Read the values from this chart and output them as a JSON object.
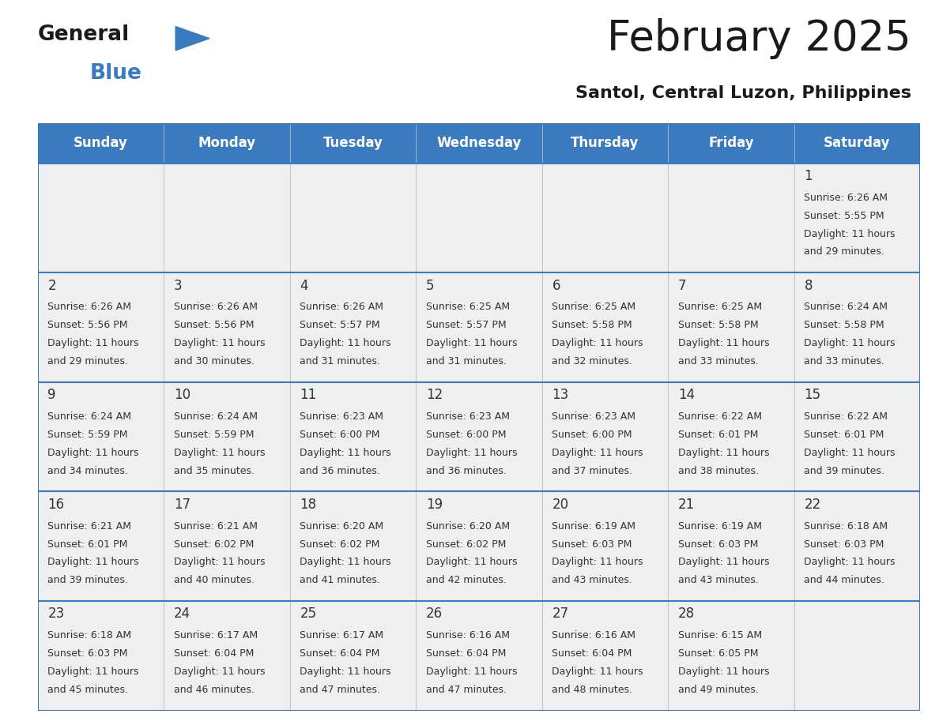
{
  "title": "February 2025",
  "subtitle": "Santol, Central Luzon, Philippines",
  "days_of_week": [
    "Sunday",
    "Monday",
    "Tuesday",
    "Wednesday",
    "Thursday",
    "Friday",
    "Saturday"
  ],
  "header_bg_color": "#3a7abf",
  "header_text_color": "#ffffff",
  "cell_bg_color": "#efefef",
  "border_color": "#3a7abf",
  "separator_color": "#3a7abf",
  "day_number_color": "#333333",
  "text_color": "#333333",
  "calendar_data": [
    [
      null,
      null,
      null,
      null,
      null,
      null,
      {
        "day": 1,
        "sunrise": "6:26 AM",
        "sunset": "5:55 PM",
        "daylight_hours": 11,
        "daylight_minutes": 29
      }
    ],
    [
      {
        "day": 2,
        "sunrise": "6:26 AM",
        "sunset": "5:56 PM",
        "daylight_hours": 11,
        "daylight_minutes": 29
      },
      {
        "day": 3,
        "sunrise": "6:26 AM",
        "sunset": "5:56 PM",
        "daylight_hours": 11,
        "daylight_minutes": 30
      },
      {
        "day": 4,
        "sunrise": "6:26 AM",
        "sunset": "5:57 PM",
        "daylight_hours": 11,
        "daylight_minutes": 31
      },
      {
        "day": 5,
        "sunrise": "6:25 AM",
        "sunset": "5:57 PM",
        "daylight_hours": 11,
        "daylight_minutes": 31
      },
      {
        "day": 6,
        "sunrise": "6:25 AM",
        "sunset": "5:58 PM",
        "daylight_hours": 11,
        "daylight_minutes": 32
      },
      {
        "day": 7,
        "sunrise": "6:25 AM",
        "sunset": "5:58 PM",
        "daylight_hours": 11,
        "daylight_minutes": 33
      },
      {
        "day": 8,
        "sunrise": "6:24 AM",
        "sunset": "5:58 PM",
        "daylight_hours": 11,
        "daylight_minutes": 33
      }
    ],
    [
      {
        "day": 9,
        "sunrise": "6:24 AM",
        "sunset": "5:59 PM",
        "daylight_hours": 11,
        "daylight_minutes": 34
      },
      {
        "day": 10,
        "sunrise": "6:24 AM",
        "sunset": "5:59 PM",
        "daylight_hours": 11,
        "daylight_minutes": 35
      },
      {
        "day": 11,
        "sunrise": "6:23 AM",
        "sunset": "6:00 PM",
        "daylight_hours": 11,
        "daylight_minutes": 36
      },
      {
        "day": 12,
        "sunrise": "6:23 AM",
        "sunset": "6:00 PM",
        "daylight_hours": 11,
        "daylight_minutes": 36
      },
      {
        "day": 13,
        "sunrise": "6:23 AM",
        "sunset": "6:00 PM",
        "daylight_hours": 11,
        "daylight_minutes": 37
      },
      {
        "day": 14,
        "sunrise": "6:22 AM",
        "sunset": "6:01 PM",
        "daylight_hours": 11,
        "daylight_minutes": 38
      },
      {
        "day": 15,
        "sunrise": "6:22 AM",
        "sunset": "6:01 PM",
        "daylight_hours": 11,
        "daylight_minutes": 39
      }
    ],
    [
      {
        "day": 16,
        "sunrise": "6:21 AM",
        "sunset": "6:01 PM",
        "daylight_hours": 11,
        "daylight_minutes": 39
      },
      {
        "day": 17,
        "sunrise": "6:21 AM",
        "sunset": "6:02 PM",
        "daylight_hours": 11,
        "daylight_minutes": 40
      },
      {
        "day": 18,
        "sunrise": "6:20 AM",
        "sunset": "6:02 PM",
        "daylight_hours": 11,
        "daylight_minutes": 41
      },
      {
        "day": 19,
        "sunrise": "6:20 AM",
        "sunset": "6:02 PM",
        "daylight_hours": 11,
        "daylight_minutes": 42
      },
      {
        "day": 20,
        "sunrise": "6:19 AM",
        "sunset": "6:03 PM",
        "daylight_hours": 11,
        "daylight_minutes": 43
      },
      {
        "day": 21,
        "sunrise": "6:19 AM",
        "sunset": "6:03 PM",
        "daylight_hours": 11,
        "daylight_minutes": 43
      },
      {
        "day": 22,
        "sunrise": "6:18 AM",
        "sunset": "6:03 PM",
        "daylight_hours": 11,
        "daylight_minutes": 44
      }
    ],
    [
      {
        "day": 23,
        "sunrise": "6:18 AM",
        "sunset": "6:03 PM",
        "daylight_hours": 11,
        "daylight_minutes": 45
      },
      {
        "day": 24,
        "sunrise": "6:17 AM",
        "sunset": "6:04 PM",
        "daylight_hours": 11,
        "daylight_minutes": 46
      },
      {
        "day": 25,
        "sunrise": "6:17 AM",
        "sunset": "6:04 PM",
        "daylight_hours": 11,
        "daylight_minutes": 47
      },
      {
        "day": 26,
        "sunrise": "6:16 AM",
        "sunset": "6:04 PM",
        "daylight_hours": 11,
        "daylight_minutes": 47
      },
      {
        "day": 27,
        "sunrise": "6:16 AM",
        "sunset": "6:04 PM",
        "daylight_hours": 11,
        "daylight_minutes": 48
      },
      {
        "day": 28,
        "sunrise": "6:15 AM",
        "sunset": "6:05 PM",
        "daylight_hours": 11,
        "daylight_minutes": 49
      },
      null
    ]
  ],
  "logo_general_color": "#1a1a1a",
  "logo_blue_color": "#3a7abf",
  "logo_triangle_color": "#3a7abf",
  "title_fontsize": 38,
  "subtitle_fontsize": 16,
  "header_fontsize": 12,
  "day_num_fontsize": 12,
  "cell_text_fontsize": 9
}
